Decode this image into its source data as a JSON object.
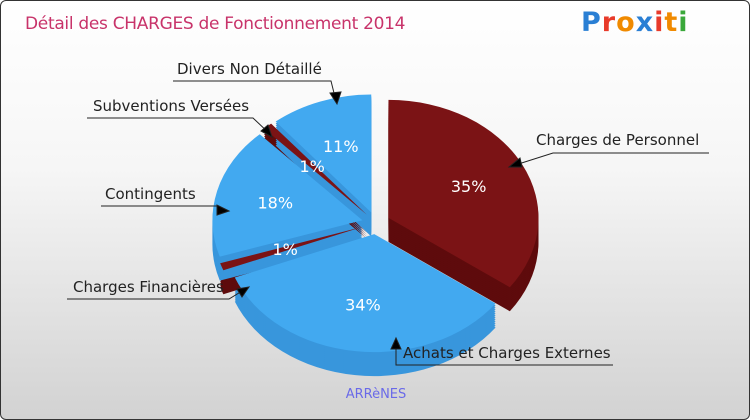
{
  "title": "Détail des CHARGES de Fonctionnement 2014",
  "logo": "Proxiti",
  "logo_colors": [
    "#2a7fd4",
    "#e83a2a",
    "#f08a00",
    "#2a7fd4",
    "#e83a2a",
    "#f08a00",
    "#3aa83a"
  ],
  "chart_data": {
    "type": "pie",
    "title": "Détail des CHARGES de Fonctionnement 2014",
    "subtitle": "ARRèNES",
    "categories": [
      "Charges de Personnel",
      "Achats et Charges Externes",
      "Charges Financières",
      "Contingents",
      "Subventions Versées",
      "Divers Non Détaillé"
    ],
    "values": [
      35,
      34,
      1,
      18,
      1,
      11
    ],
    "value_labels": [
      "35%",
      "34%",
      "1%",
      "18%",
      "1%",
      "11%"
    ],
    "colors": [
      "#7b1315",
      "#42a9f0",
      "#7b1315",
      "#42a9f0",
      "#7b1315",
      "#42a9f0"
    ],
    "side_colors": [
      "#5e0b0c",
      "#3896dc",
      "#5e0b0c",
      "#3896dc",
      "#5e0b0c",
      "#3896dc"
    ]
  }
}
